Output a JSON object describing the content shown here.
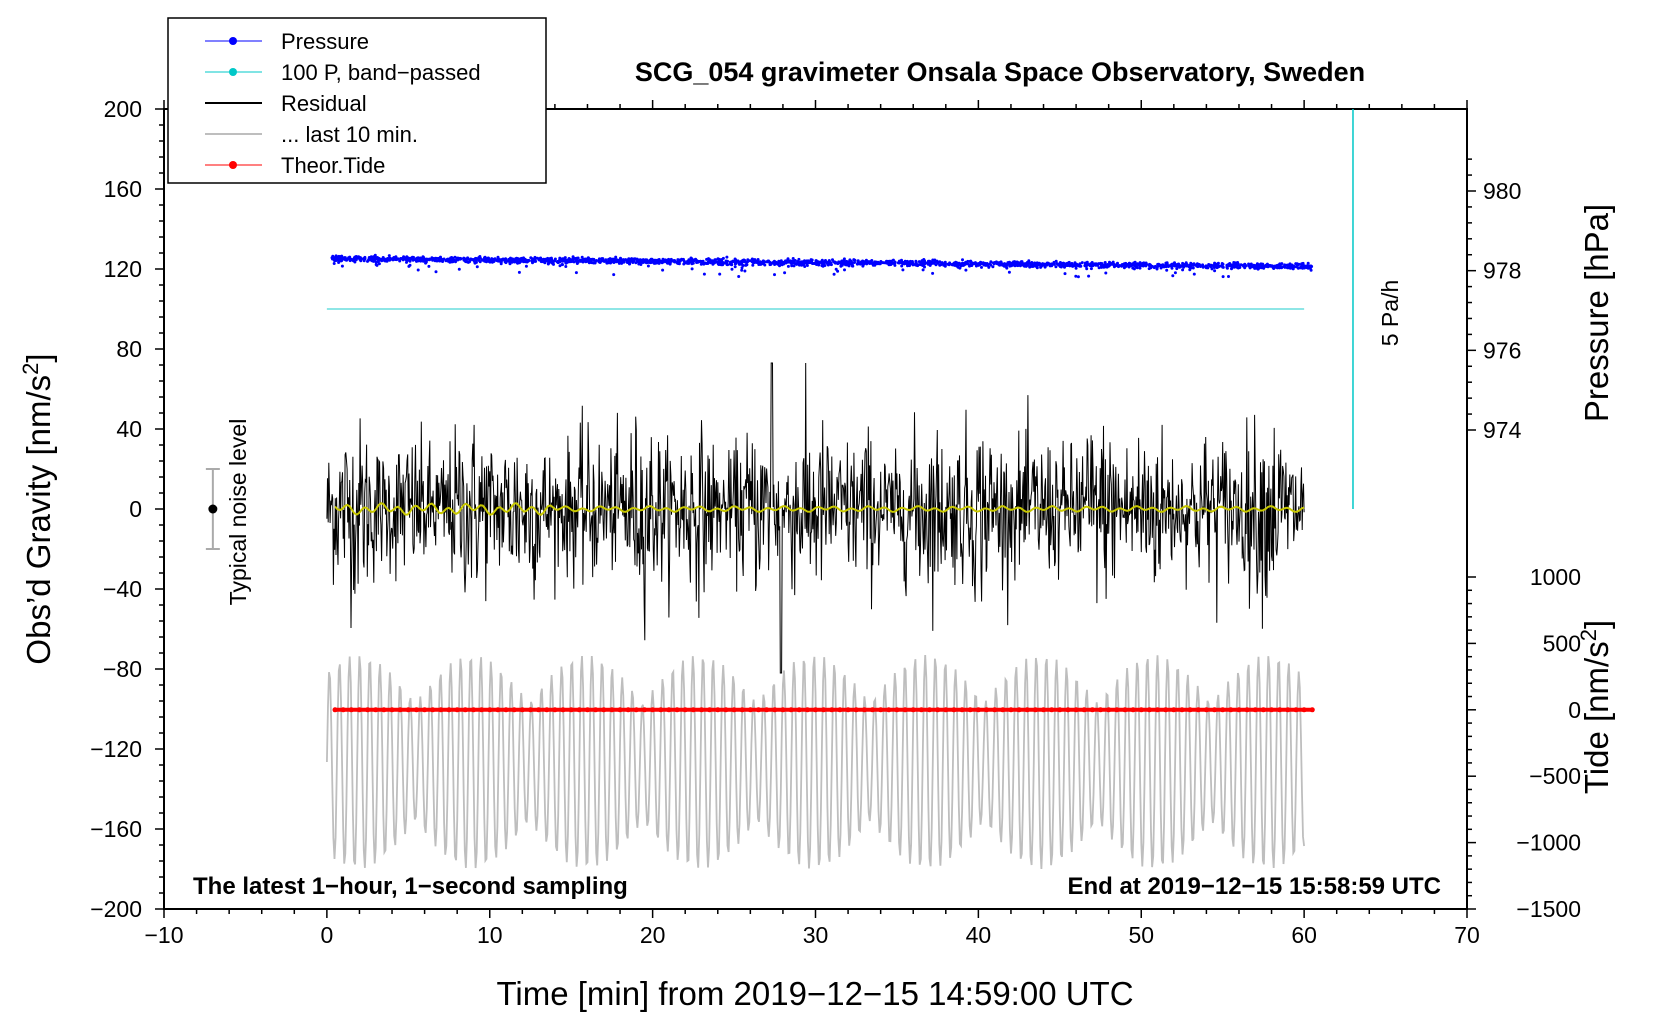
{
  "chart_data": {
    "type": "line",
    "title": "SCG_054 gravimeter Onsala Space Observatory, Sweden",
    "xlabel": "Time [min] from 2019−12−15 14:59:00 UTC",
    "ylabel_left": "Obs’d Gravity [nm/s",
    "ylabel_left_sup": "2",
    "ylabel_left_end": "]",
    "ylabel_right_pressure": "Pressure [hPa]",
    "ylabel_right_tide": "Tide [nm/s",
    "ylabel_right_tide_sup": "2",
    "ylabel_right_tide_end": "]",
    "xlim": [
      -10,
      70
    ],
    "ylim": [
      -200,
      200
    ],
    "x_ticks": [
      -10,
      0,
      10,
      20,
      30,
      40,
      50,
      60,
      70
    ],
    "x_tick_labels": [
      "−10",
      "0",
      "10",
      "20",
      "30",
      "40",
      "50",
      "60",
      "70"
    ],
    "y_ticks": [
      -200,
      -160,
      -120,
      -80,
      -40,
      0,
      40,
      80,
      120,
      160,
      200
    ],
    "y_tick_labels": [
      "−200",
      "−160",
      "−120",
      "−80",
      "−40",
      "0",
      "40",
      "80",
      "120",
      "160",
      "200"
    ],
    "pressure_axis": {
      "ticks": [
        974,
        976,
        978,
        980
      ],
      "tick_labels": [
        "974",
        "976",
        "978",
        "980"
      ]
    },
    "tide_axis": {
      "ticks": [
        -1500,
        -1000,
        -500,
        0,
        500,
        1000
      ],
      "tick_labels": [
        "−1500",
        "−1000",
        "−500",
        "0",
        "500",
        "1000"
      ]
    },
    "legend": {
      "position": "top-left",
      "entries": [
        {
          "label": "Pressure",
          "color": "#0000ff",
          "marker": "dot"
        },
        {
          "label": "100 P, band−passed",
          "color": "#00c8c8",
          "marker": "dot"
        },
        {
          "label": "Residual",
          "color": "#000000",
          "marker": "line"
        },
        {
          "label": "... last 10 min.",
          "color": "#bebebe",
          "marker": "line"
        },
        {
          "label": "Theor.Tide",
          "color": "#ff0000",
          "marker": "dot"
        }
      ]
    },
    "series": [
      {
        "name": "Pressure",
        "axis": "pressure_hPa",
        "x_range": [
          0.3,
          60.5
        ],
        "values_start_end": [
          978.3,
          978.1
        ],
        "noise_hPa": 0.08,
        "color": "#0000ff"
      },
      {
        "name": "100 P, band−passed",
        "axis": "gravity_nm_s2",
        "x_range": [
          0,
          60
        ],
        "value": 100,
        "color": "#00c8c8"
      },
      {
        "name": "Residual",
        "axis": "gravity_nm_s2",
        "x_range": [
          0,
          60
        ],
        "typical_amplitude": 40,
        "peak_max": 73,
        "peak_min": -82,
        "color": "#000000"
      },
      {
        "name": "Residual smoothed",
        "axis": "gravity_nm_s2",
        "x_range": [
          0.5,
          60
        ],
        "value": 0,
        "amplitude": 3,
        "color": "#c8c800"
      },
      {
        "name": "... last 10 min.",
        "axis": "gravity_nm_s2",
        "x_range": [
          0,
          60
        ],
        "range": [
          -180,
          -73
        ],
        "color": "#bebebe"
      },
      {
        "name": "Theor.Tide",
        "axis": "tide_nm_s2",
        "x_range": [
          0.5,
          60.5
        ],
        "values_start_end": [
          0,
          0
        ],
        "color": "#ff0000"
      }
    ],
    "pressure_rate_scale": {
      "label": "5 Pa/h",
      "x": 63,
      "y_range": [
        0,
        200
      ],
      "color": "#00c8c8"
    },
    "noise_bar": {
      "label": "Typical noise level",
      "x": -7,
      "center": 0,
      "range": [
        -20,
        20
      ]
    },
    "annotations": {
      "bottom_left": "The latest 1−hour, 1−second sampling",
      "bottom_right": "End at 2019−12−15 15:58:59 UTC"
    }
  }
}
